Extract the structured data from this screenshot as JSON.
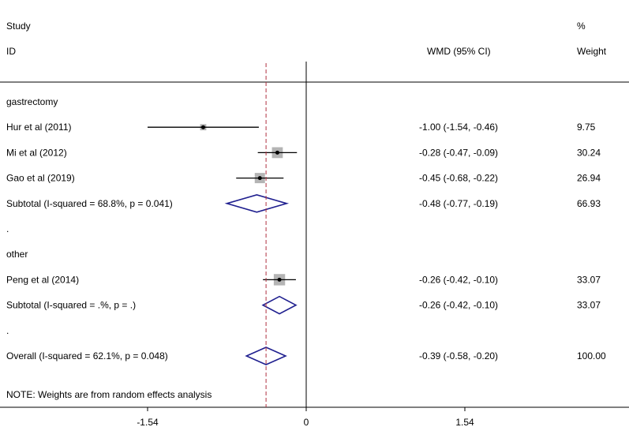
{
  "chart_data": {
    "type": "forest",
    "headers": {
      "study_line1": "Study",
      "study_line2": "ID",
      "effect": "WMD (95% CI)",
      "weight_line1": "%",
      "weight_line2": "Weight"
    },
    "rows": [
      {
        "kind": "group",
        "label": "gastrectomy"
      },
      {
        "kind": "study",
        "label": "Hur et al (2011)",
        "est": -1.0,
        "lo": -1.54,
        "hi": -0.46,
        "ci_text": "-1.00 (-1.54, -0.46)",
        "weight": "9.75",
        "w": 9.75
      },
      {
        "kind": "study",
        "label": "Mi et al (2012)",
        "est": -0.28,
        "lo": -0.47,
        "hi": -0.09,
        "ci_text": "-0.28 (-0.47, -0.09)",
        "weight": "30.24",
        "w": 30.24
      },
      {
        "kind": "study",
        "label": "Gao et al (2019)",
        "est": -0.45,
        "lo": -0.68,
        "hi": -0.22,
        "ci_text": "-0.45 (-0.68, -0.22)",
        "weight": "26.94",
        "w": 26.94
      },
      {
        "kind": "subtotal",
        "label": "Subtotal  (I-squared = 68.8%, p = 0.041)",
        "est": -0.48,
        "lo": -0.77,
        "hi": -0.19,
        "ci_text": "-0.48 (-0.77, -0.19)",
        "weight": "66.93"
      },
      {
        "kind": "blank",
        "label": "."
      },
      {
        "kind": "group",
        "label": "other"
      },
      {
        "kind": "study",
        "label": "Peng et al (2014)",
        "est": -0.26,
        "lo": -0.42,
        "hi": -0.1,
        "ci_text": "-0.26 (-0.42, -0.10)",
        "weight": "33.07",
        "w": 33.07
      },
      {
        "kind": "subtotal",
        "label": "Subtotal  (I-squared = .%, p = .)",
        "est": -0.26,
        "lo": -0.42,
        "hi": -0.1,
        "ci_text": "-0.26 (-0.42, -0.10)",
        "weight": "33.07"
      },
      {
        "kind": "blank",
        "label": "."
      },
      {
        "kind": "overall",
        "label": "Overall  (I-squared = 62.1%, p = 0.048)",
        "est": -0.39,
        "lo": -0.58,
        "hi": -0.2,
        "ci_text": "-0.39 (-0.58, -0.20)",
        "weight": "100.00"
      }
    ],
    "note": "NOTE: Weights are from random effects analysis",
    "x_ticks": [
      -1.54,
      0,
      1.54
    ],
    "x_tick_labels": [
      "-1.54",
      "0",
      "1.54"
    ],
    "null_line": 0,
    "pooled_line": -0.39,
    "colors": {
      "diamond": "#1f1f8f",
      "pooled_line": "#b03040",
      "box": "#b4b4b4",
      "axis": "#000000"
    }
  }
}
